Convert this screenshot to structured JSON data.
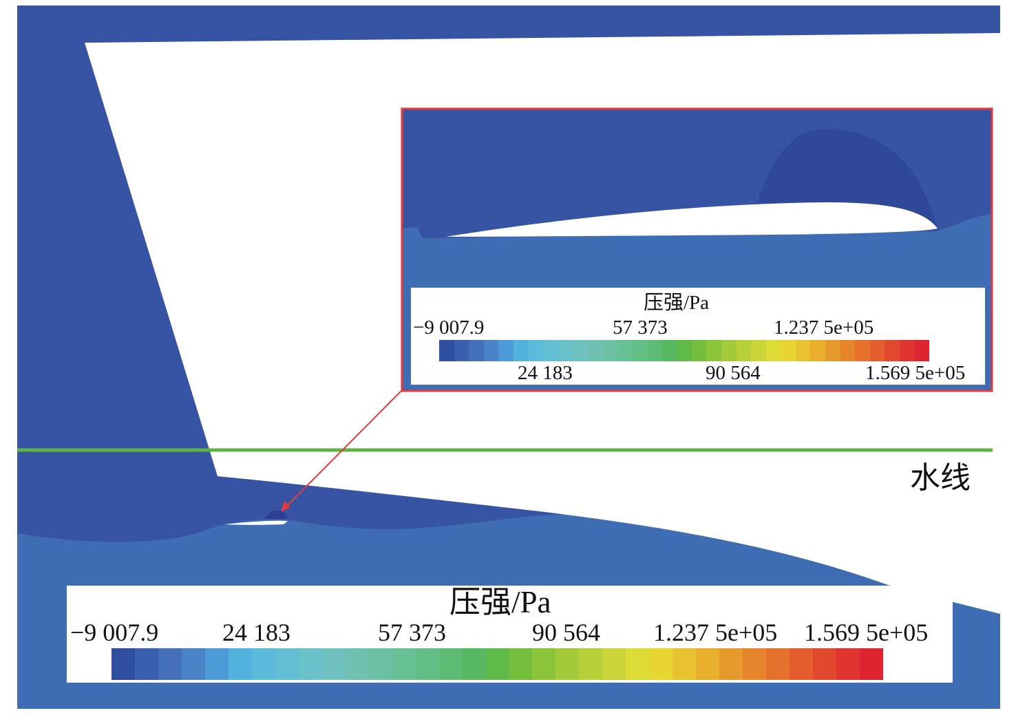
{
  "waterline_label": "水线",
  "colors": {
    "domain_dark": "#3753A3",
    "domain_mid": "#3E6DB4",
    "low_pressure": "#3349A0",
    "waterline": "#5BB53E",
    "callout": "#E03A3A"
  },
  "colormap": [
    "#2E4FA0",
    "#3A5FAE",
    "#4470BA",
    "#4A84C7",
    "#4C9BD6",
    "#52B2DE",
    "#5CBBDA",
    "#63BFD3",
    "#6AC1CA",
    "#6FC2BF",
    "#6FC2B2",
    "#6CC1A4",
    "#68C095",
    "#63BE85",
    "#5EBB74",
    "#58B85F",
    "#5FBA4A",
    "#74BE3C",
    "#8BC43A",
    "#A2CA3A",
    "#B7D03A",
    "#CAD53A",
    "#DDDB36",
    "#E7D531",
    "#E8C22F",
    "#E8AF2D",
    "#E79A2C",
    "#E6852B",
    "#E5712C",
    "#E35D2D",
    "#E2482E",
    "#E03431",
    "#DE2430"
  ],
  "legend_main": {
    "title": "压强/Pa",
    "ticks": [
      "−9 007.9",
      "24 183",
      "57 373",
      "90 564",
      "1.237 5e+05",
      "1.569 5e+05"
    ]
  },
  "legend_inset": {
    "title": "压强/Pa",
    "ticks_top": [
      "−9 007.9",
      "57 373",
      "1.237 5e+05"
    ],
    "ticks_bottom": [
      "24 183",
      "90 564",
      "1.569 5e+05"
    ]
  }
}
